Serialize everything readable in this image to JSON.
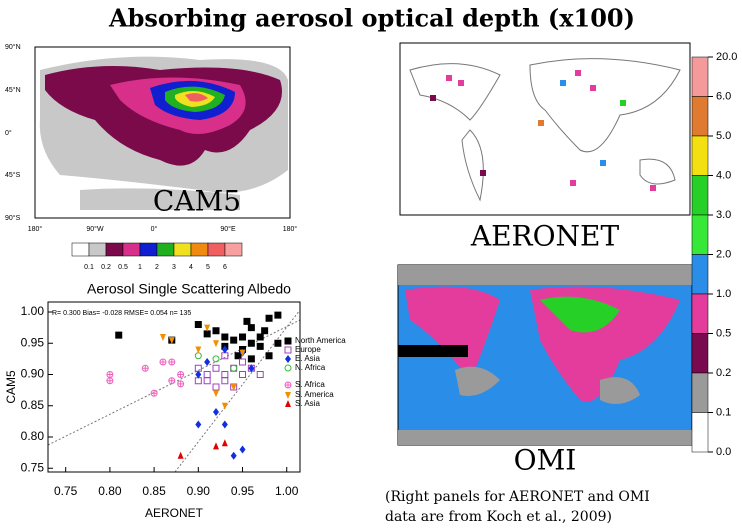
{
  "title": "Absorbing aerosol optical depth (x100)",
  "cam5_map": {
    "label": "CAM5",
    "lat_labels": [
      "90°N",
      "45°N",
      "0°",
      "45°S",
      "90°S"
    ],
    "lon_labels": [
      "180°",
      "90°W",
      "0°",
      "90°E",
      "180°"
    ],
    "colorbar": {
      "labels": [
        "0.1",
        "0.2",
        "0.5",
        "1",
        "2",
        "3",
        "4",
        "5",
        "6"
      ],
      "colors": [
        "#ffffff",
        "#c8c8c8",
        "#7a0a4a",
        "#d8308a",
        "#1020d0",
        "#20b020",
        "#f0e020",
        "#f08a10",
        "#f06060",
        "#f8a0a0"
      ]
    }
  },
  "aeronet_map": {
    "label": "AERONET"
  },
  "omi_map": {
    "label": "OMI"
  },
  "right_colorbar": {
    "labels": [
      "20.0",
      "6.0",
      "5.0",
      "4.0",
      "3.0",
      "2.0",
      "1.0",
      "0.5",
      "0.2",
      "0.1",
      "0.0"
    ],
    "colors": [
      "#f49a9a",
      "#e07a30",
      "#f4e010",
      "#26d026",
      "#38e838",
      "#2a8ee8",
      "#e43c9c",
      "#7a0a50",
      "#9a9a9a",
      "#ffffff"
    ]
  },
  "caption": [
    "(Right panels for AERONET and OMI",
    "data are from Koch et al., 2009)"
  ],
  "chart_data": {
    "type": "scatter",
    "title": "Aerosol Single Scattering Albedo",
    "x_label": "AERONET",
    "y_label": "CAM5",
    "annotation": "R= 0.300 Bias= -0.028 RMSE= 0.054 n= 135",
    "xlim": [
      0.73,
      1.015
    ],
    "ylim": [
      0.744,
      1.016
    ],
    "xticks": [
      0.75,
      {
        "value": 0.8,
        "label": "0.80"
      },
      0.85,
      {
        "value": 0.9,
        "label": "0.90"
      },
      0.95,
      {
        "value": 1,
        "label": "1.00"
      }
    ],
    "yticks": [
      0.75,
      {
        "value": 0.8,
        "label": "0.80"
      },
      0.85,
      {
        "value": 0.9,
        "label": "0.90"
      },
      0.95,
      {
        "value": 1,
        "label": "1.00"
      }
    ],
    "series": [
      {
        "name": "North America",
        "color": "#000000",
        "marker": "square",
        "x": [
          0.81,
          0.87,
          0.9,
          0.91,
          0.92,
          0.93,
          0.94,
          0.95,
          0.95,
          0.96,
          0.96,
          0.97,
          0.97,
          0.98,
          0.98,
          0.99,
          0.93,
          0.945,
          0.96,
          0.99,
          0.975,
          0.955
        ],
        "y": [
          0.963,
          0.955,
          0.98,
          0.965,
          0.97,
          0.96,
          0.955,
          0.96,
          0.94,
          0.975,
          0.95,
          0.945,
          0.96,
          0.99,
          0.93,
          0.95,
          0.945,
          0.93,
          0.925,
          0.995,
          0.97,
          0.985
        ]
      },
      {
        "name": "Europe",
        "color": "#a040c0",
        "marker": "square-open",
        "x": [
          0.9,
          0.91,
          0.91,
          0.92,
          0.92,
          0.93,
          0.93,
          0.94,
          0.94,
          0.95,
          0.95,
          0.96,
          0.97,
          0.93,
          0.9
        ],
        "y": [
          0.91,
          0.9,
          0.89,
          0.91,
          0.88,
          0.9,
          0.89,
          0.91,
          0.88,
          0.9,
          0.92,
          0.91,
          0.9,
          0.93,
          0.89
        ]
      },
      {
        "name": "E. Asia",
        "color": "#1030e0",
        "marker": "diamond",
        "x": [
          0.9,
          0.91,
          0.92,
          0.93,
          0.93,
          0.94,
          0.95,
          0.96,
          0.95,
          0.9
        ],
        "y": [
          0.9,
          0.92,
          0.84,
          0.82,
          0.94,
          0.77,
          0.78,
          0.91,
          0.935,
          0.82
        ]
      },
      {
        "name": "N. Africa",
        "color": "#30c030",
        "marker": "circle-open",
        "x": [
          0.9,
          0.92,
          0.94
        ],
        "y": [
          0.93,
          0.925,
          0.91
        ]
      },
      {
        "name": "S. Africa",
        "color": "#f060c0",
        "marker": "circle-plus",
        "x": [
          0.8,
          0.8,
          0.84,
          0.85,
          0.86,
          0.87,
          0.87,
          0.88,
          0.88
        ],
        "y": [
          0.89,
          0.9,
          0.91,
          0.87,
          0.92,
          0.92,
          0.89,
          0.885,
          0.9
        ]
      },
      {
        "name": "S. America",
        "color": "#f09000",
        "marker": "triangle-down",
        "x": [
          0.86,
          0.87,
          0.91,
          0.92,
          0.92,
          0.93,
          0.94,
          0.95,
          0.9
        ],
        "y": [
          0.96,
          0.955,
          0.975,
          0.95,
          0.87,
          0.85,
          0.88,
          0.935,
          0.94
        ]
      },
      {
        "name": "S. Asia",
        "color": "#e00000",
        "marker": "triangle",
        "x": [
          0.88,
          0.92,
          0.93
        ],
        "y": [
          0.77,
          0.785,
          0.79
        ]
      }
    ]
  }
}
